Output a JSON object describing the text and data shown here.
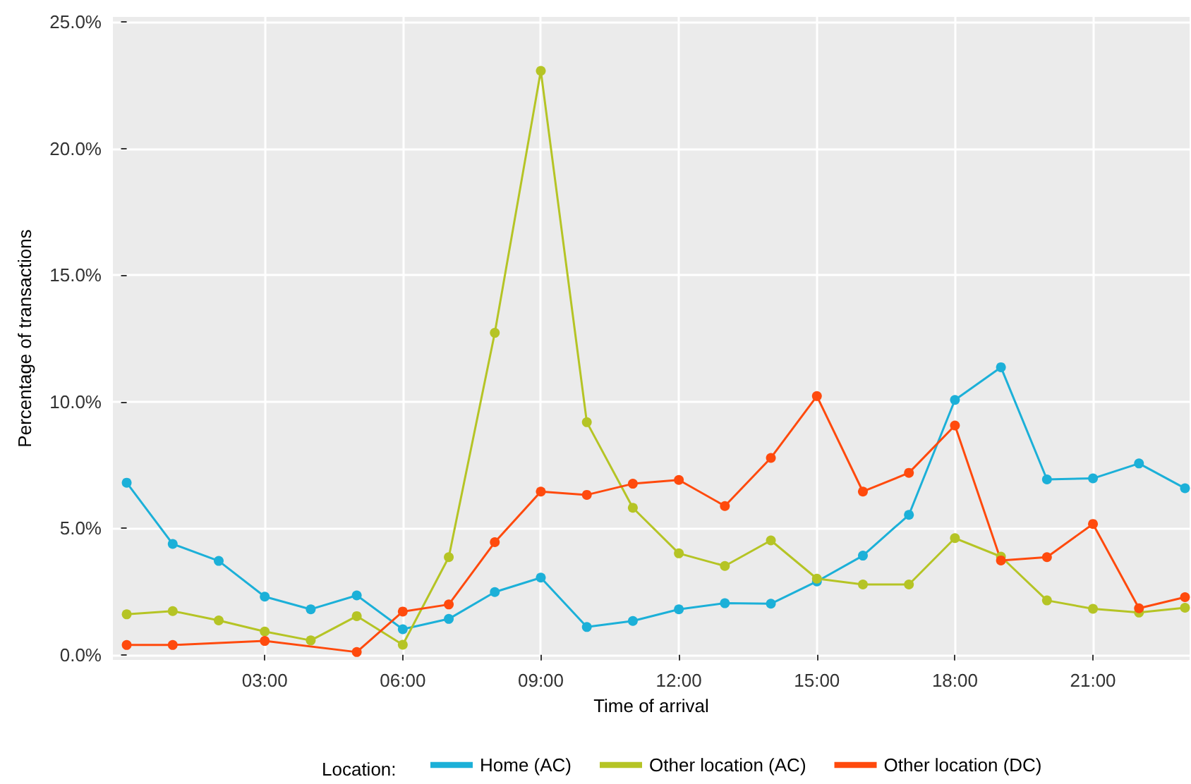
{
  "chart_data": {
    "type": "line",
    "xlabel": "Time of arrival",
    "ylabel": "Percentage of transactions",
    "legend_title": "Location:",
    "x": [
      0,
      1,
      2,
      3,
      4,
      5,
      6,
      7,
      8,
      9,
      10,
      11,
      12,
      13,
      14,
      15,
      16,
      17,
      18,
      19,
      20,
      21,
      22,
      23
    ],
    "xlim": [
      -0.3,
      23.1
    ],
    "xticks": [
      {
        "value": 3,
        "label": "03:00"
      },
      {
        "value": 6,
        "label": "06:00"
      },
      {
        "value": 9,
        "label": "09:00"
      },
      {
        "value": 12,
        "label": "12:00"
      },
      {
        "value": 15,
        "label": "15:00"
      },
      {
        "value": 18,
        "label": "18:00"
      },
      {
        "value": 21,
        "label": "21:00"
      }
    ],
    "ylim": [
      -0.2,
      25.2
    ],
    "yticks": [
      {
        "value": 0,
        "label": "0.0%"
      },
      {
        "value": 5,
        "label": "5.0%"
      },
      {
        "value": 10,
        "label": "10.0%"
      },
      {
        "value": 15,
        "label": "15.0%"
      },
      {
        "value": 20,
        "label": "20.0%"
      },
      {
        "value": 25,
        "label": "25.0%"
      }
    ],
    "series": [
      {
        "name": "Home (AC)",
        "color": "#1cb0d8",
        "values": [
          6.8,
          4.38,
          3.71,
          2.3,
          1.8,
          2.35,
          1.01,
          1.42,
          2.48,
          3.05,
          1.1,
          1.34,
          1.8,
          2.04,
          2.02,
          2.9,
          3.92,
          5.53,
          10.07,
          11.36,
          6.93,
          6.97,
          7.56,
          6.58
        ]
      },
      {
        "name": "Other location (AC)",
        "color": "#b5c425",
        "values": [
          1.6,
          1.73,
          1.36,
          0.92,
          0.57,
          1.53,
          0.4,
          3.86,
          12.72,
          23.07,
          9.19,
          5.81,
          4.01,
          3.51,
          4.52,
          3.01,
          2.78,
          2.78,
          4.61,
          3.88,
          2.15,
          1.82,
          1.67,
          1.86
        ]
      },
      {
        "name": "Other location (DC)",
        "color": "#ff4a0d",
        "values": [
          0.39,
          0.39,
          null,
          0.55,
          null,
          0.11,
          1.71,
          1.99,
          4.45,
          6.45,
          6.32,
          6.76,
          6.91,
          5.88,
          7.78,
          10.22,
          6.45,
          7.19,
          9.06,
          3.73,
          3.86,
          5.17,
          1.84,
          2.28
        ]
      }
    ],
    "grid": true,
    "legend": "bottom",
    "marker": "circle",
    "line_style": "solid"
  }
}
